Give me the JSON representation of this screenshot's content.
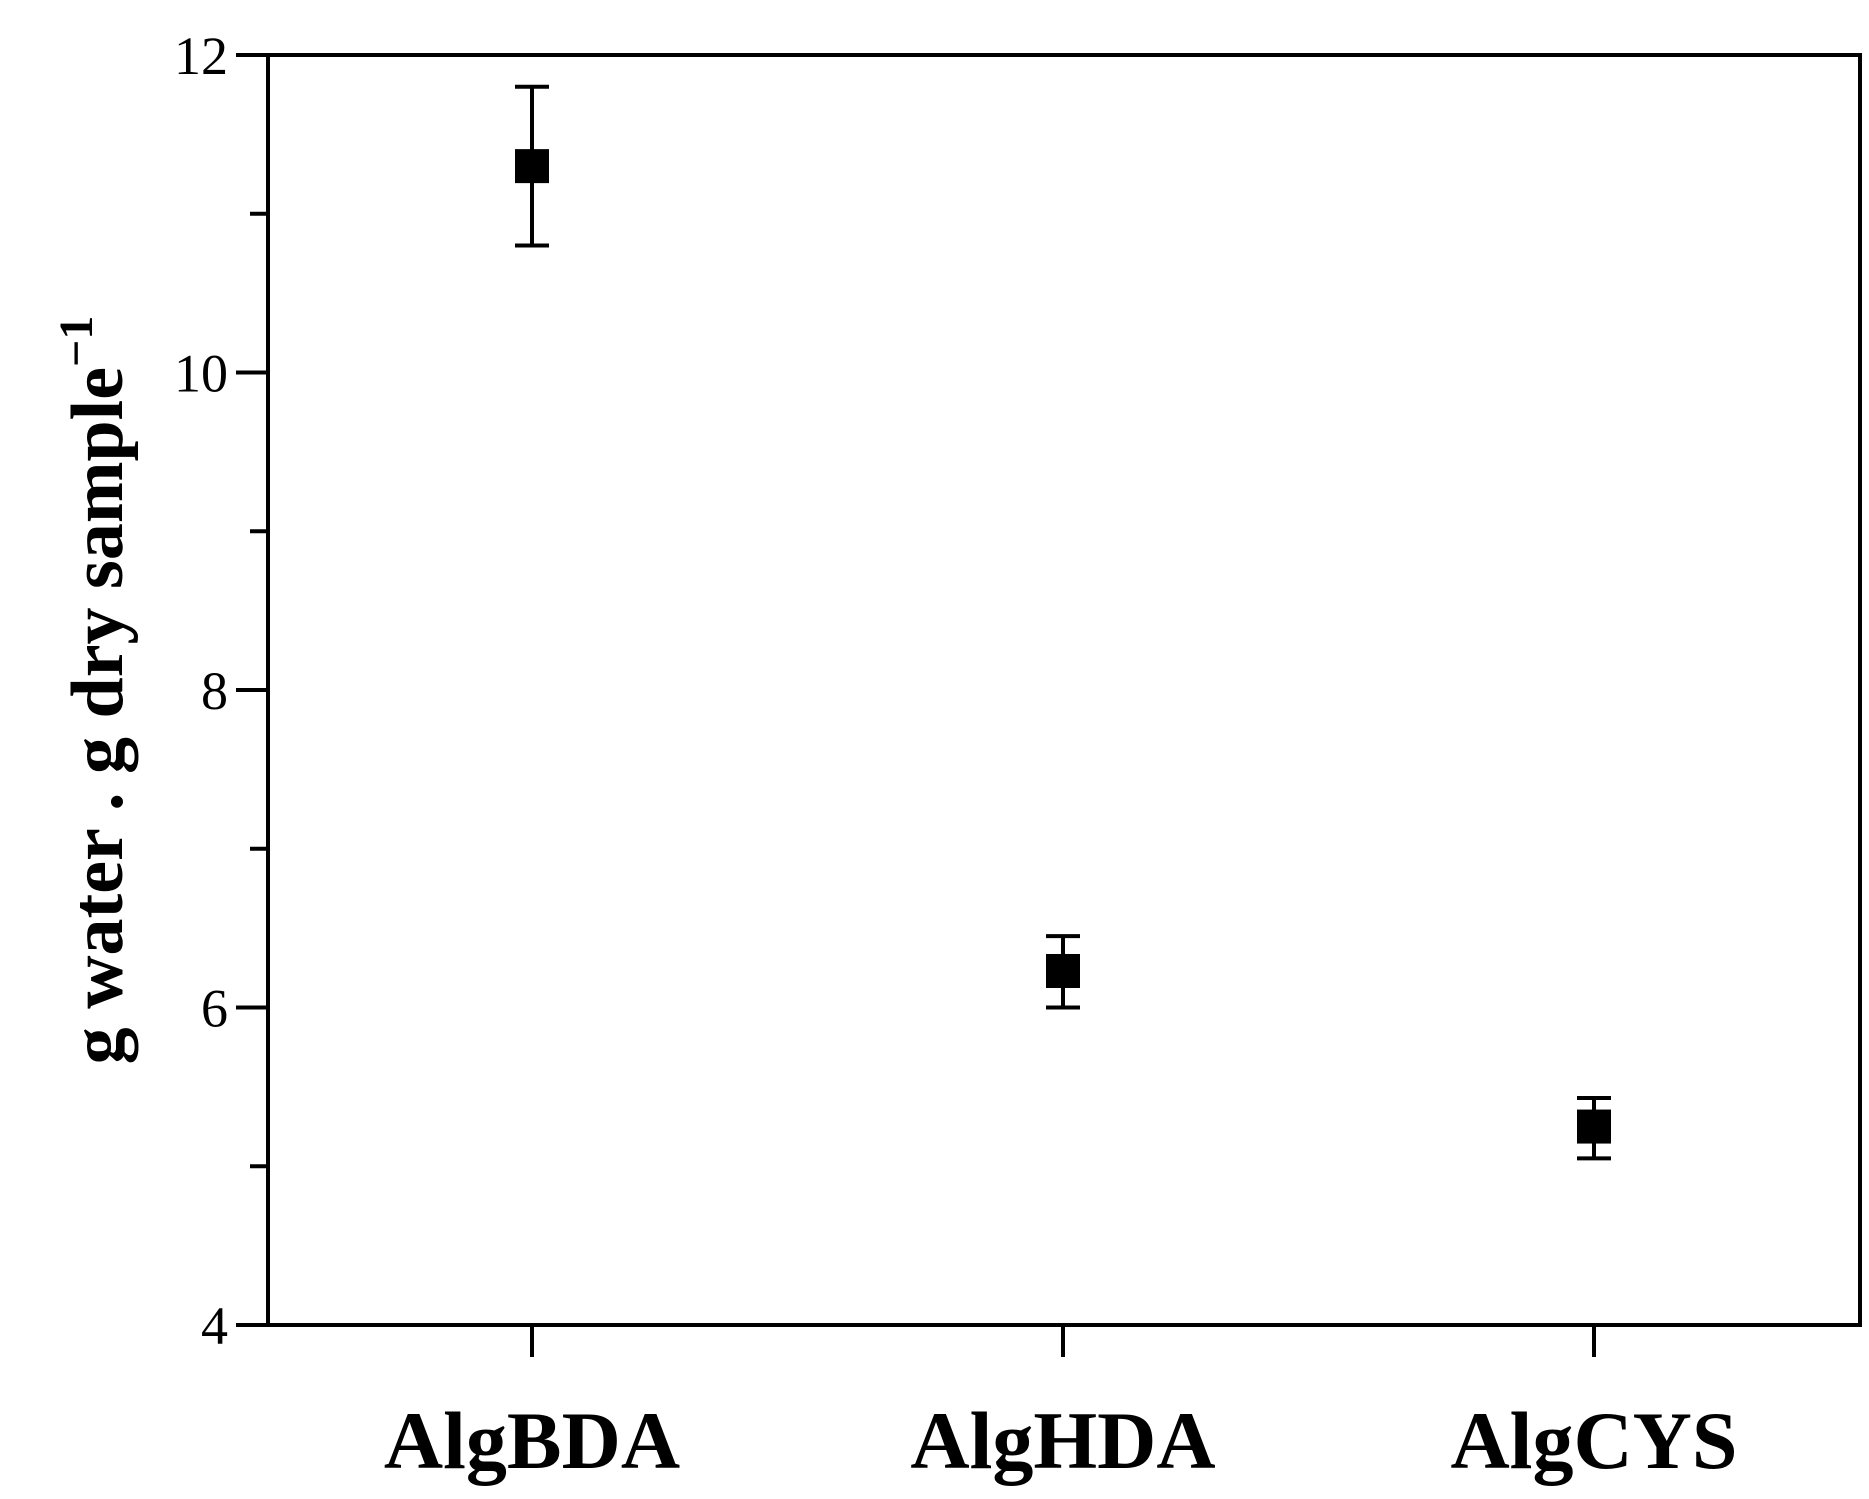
{
  "chart_data": {
    "type": "scatter",
    "categories": [
      "AlgBDA",
      "AlgHDA",
      "AlgCYS"
    ],
    "values": [
      11.3,
      6.23,
      5.25
    ],
    "errors": [
      {
        "low": 10.8,
        "high": 11.8
      },
      {
        "low": 6.0,
        "high": 6.45
      },
      {
        "low": 5.05,
        "high": 5.43
      }
    ],
    "ylabel_main": "g water . g dry sample",
    "ylabel_sup": "−1",
    "ylim": [
      4,
      12
    ],
    "yticks": [
      4,
      6,
      8,
      10,
      12
    ],
    "yticks_labels": [
      "4",
      "6",
      "8",
      "10",
      "12"
    ],
    "yminor": [
      5,
      7,
      9,
      11
    ],
    "grid": false,
    "legend": "none",
    "marker": "square",
    "colors": {
      "marker": "#000000",
      "axis": "#000000"
    }
  }
}
